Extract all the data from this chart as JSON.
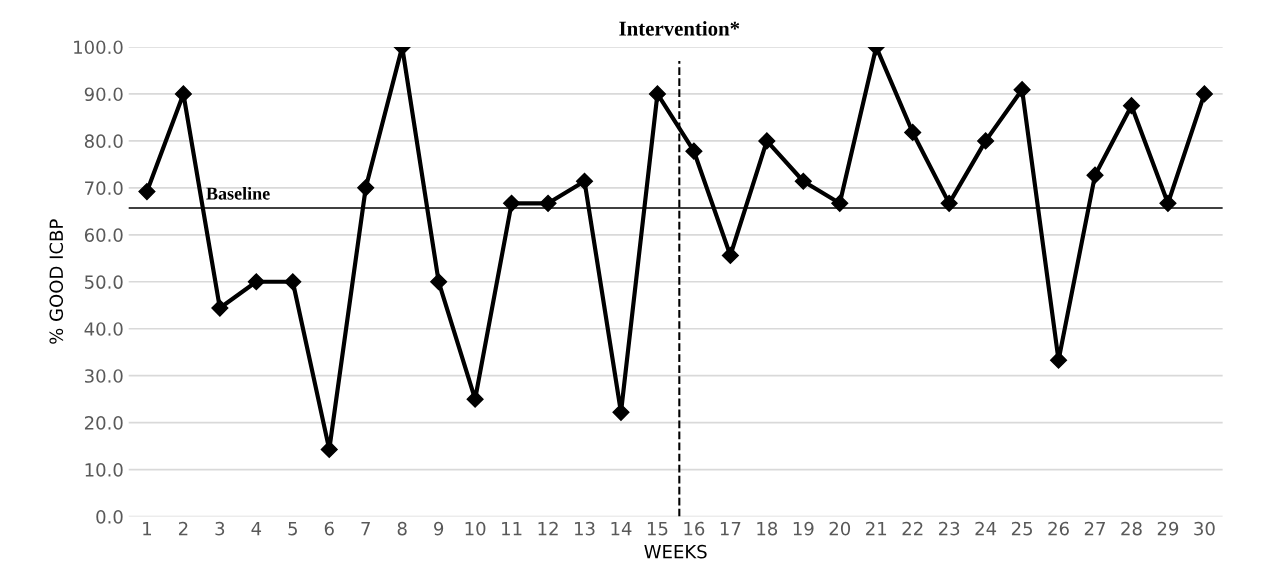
{
  "chart_data": {
    "type": "line",
    "xlabel": "WEEKS",
    "ylabel": "% GOOD ICBP",
    "x": [
      1,
      2,
      3,
      4,
      5,
      6,
      7,
      8,
      9,
      10,
      11,
      12,
      13,
      14,
      15,
      16,
      17,
      18,
      19,
      20,
      21,
      22,
      23,
      24,
      25,
      26,
      27,
      28,
      29,
      30
    ],
    "series": [
      {
        "color": "#000000",
        "values": [
          69.2,
          90,
          44.4,
          50,
          50,
          14.3,
          70,
          100,
          50,
          25,
          66.7,
          66.7,
          71.4,
          22.2,
          90,
          77.8,
          55.6,
          80,
          71.4,
          66.7,
          100,
          81.8,
          66.7,
          80,
          90.9,
          33.3,
          72.7,
          87.5,
          66.7,
          90
        ]
      }
    ],
    "xlim": [
      0.5,
      30.5
    ],
    "xticks": [
      1,
      2,
      3,
      4,
      5,
      6,
      7,
      8,
      9,
      10,
      11,
      12,
      13,
      14,
      15,
      16,
      17,
      18,
      19,
      20,
      21,
      22,
      23,
      24,
      25,
      26,
      27,
      28,
      29,
      30
    ],
    "ylim": [
      0,
      100
    ],
    "yticks": [
      {
        "value": 0,
        "label": "0.0"
      },
      {
        "value": 10,
        "label": "10.0"
      },
      {
        "value": 20,
        "label": "20.0"
      },
      {
        "value": 30,
        "label": "30.0"
      },
      {
        "value": 40,
        "label": "40.0"
      },
      {
        "value": 50,
        "label": "50.0"
      },
      {
        "value": 60,
        "label": "60.0"
      },
      {
        "value": 70,
        "label": "70.0"
      },
      {
        "value": 80,
        "label": "80.0"
      },
      {
        "value": 90,
        "label": "90.0"
      },
      {
        "value": 100,
        "label": "100.0"
      }
    ],
    "ref_lines": [
      {
        "axis": "y",
        "value": 65.7,
        "label": "Baseline",
        "color": "#000000",
        "line_style": "solid"
      },
      {
        "axis": "x",
        "value": 15.6,
        "label": "Intervention*",
        "color": "#000000",
        "line_style": "dashed"
      }
    ],
    "grid": "y",
    "marker": "diamond",
    "line_style": "solid",
    "legend": false
  }
}
